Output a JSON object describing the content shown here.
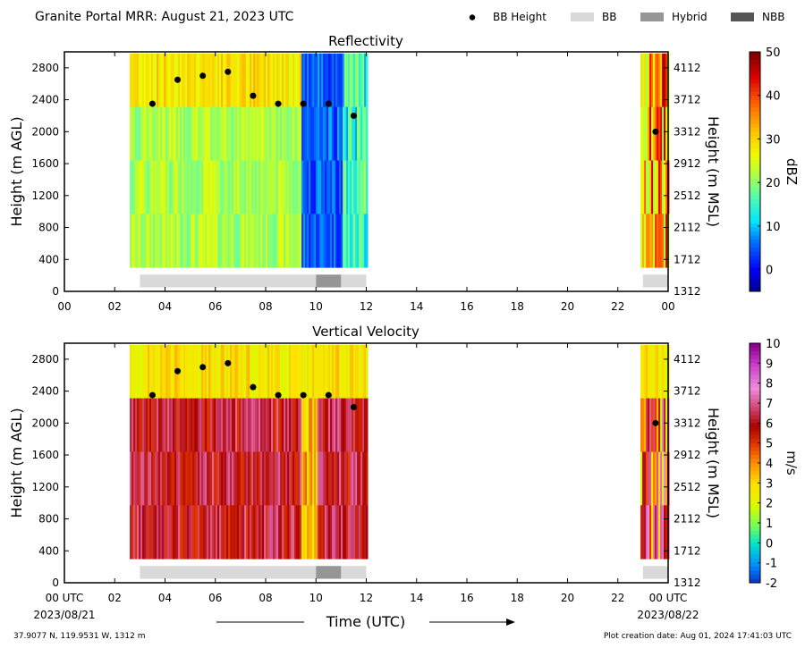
{
  "header": {
    "title": "Granite Portal MRR:  August 21, 2023 UTC",
    "legend": [
      {
        "label": "BB Height",
        "kind": "marker",
        "color": "#000000"
      },
      {
        "label": "BB",
        "kind": "box",
        "color": "#d9d9d9"
      },
      {
        "label": "Hybrid",
        "kind": "box",
        "color": "#969696"
      },
      {
        "label": "NBB",
        "kind": "box",
        "color": "#555555"
      }
    ]
  },
  "chart_data": [
    {
      "type": "heatmap",
      "title": "Reflectivity",
      "ylabel": "Height (m AGL)",
      "ylabel_right": "Height (m MSL)",
      "xlim": [
        0,
        24
      ],
      "ylim": [
        0,
        3000
      ],
      "x_ticks": [
        "00",
        "02",
        "04",
        "06",
        "08",
        "10",
        "12",
        "14",
        "16",
        "18",
        "20",
        "22",
        "00"
      ],
      "y_ticks": [
        "0",
        "400",
        "800",
        "1200",
        "1600",
        "2000",
        "2400",
        "2800"
      ],
      "y_ticks_right": [
        "1312",
        "1712",
        "2112",
        "2512",
        "2912",
        "3312",
        "3712",
        "4112"
      ],
      "colorbar": {
        "label": "dBZ",
        "min": -5,
        "max": 50,
        "ticks": [
          "0",
          "10",
          "20",
          "30",
          "40",
          "50"
        ],
        "tick_values": [
          0,
          10,
          20,
          30,
          40,
          50
        ]
      },
      "bb_height_points": [
        {
          "x": 3.5,
          "y": 2350
        },
        {
          "x": 4.5,
          "y": 2650
        },
        {
          "x": 5.5,
          "y": 2700
        },
        {
          "x": 6.5,
          "y": 2750
        },
        {
          "x": 7.5,
          "y": 2450
        },
        {
          "x": 8.5,
          "y": 2350
        },
        {
          "x": 9.5,
          "y": 2350
        },
        {
          "x": 10.5,
          "y": 2350
        },
        {
          "x": 11.5,
          "y": 2200
        },
        {
          "x": 23.5,
          "y": 2000
        }
      ],
      "data_periods": [
        [
          2.6,
          12.0
        ],
        [
          22.9,
          24.0
        ]
      ],
      "classification_bar": [
        {
          "start": 3.0,
          "end": 10.0,
          "class": "BB"
        },
        {
          "start": 10.0,
          "end": 11.0,
          "class": "Hybrid"
        },
        {
          "start": 11.0,
          "end": 12.0,
          "class": "BB"
        },
        {
          "start": 23.0,
          "end": 24.0,
          "class": "BB"
        }
      ],
      "grid": false
    },
    {
      "type": "heatmap",
      "title": "Vertical Velocity",
      "ylabel": "Height (m AGL)",
      "ylabel_right": "Height (m MSL)",
      "xlim": [
        0,
        24
      ],
      "ylim": [
        0,
        3000
      ],
      "x_ticks": [
        "00 UTC",
        "02",
        "04",
        "06",
        "08",
        "10",
        "12",
        "14",
        "16",
        "18",
        "20",
        "22",
        "00 UTC"
      ],
      "x_dates": [
        "2023/08/21",
        "2023/08/22"
      ],
      "xlabel": "Time (UTC)",
      "y_ticks": [
        "0",
        "400",
        "800",
        "1200",
        "1600",
        "2000",
        "2400",
        "2800"
      ],
      "y_ticks_right": [
        "1312",
        "1712",
        "2112",
        "2512",
        "2912",
        "3312",
        "3712",
        "4112"
      ],
      "colorbar": {
        "label": "m/s",
        "min": -2,
        "max": 10,
        "ticks": [
          "-2",
          "-1",
          "0",
          "1",
          "2",
          "3",
          "4",
          "5",
          "6",
          "7",
          "8",
          "9",
          "10"
        ],
        "tick_values": [
          -2,
          -1,
          0,
          1,
          2,
          3,
          4,
          5,
          6,
          7,
          8,
          9,
          10
        ]
      },
      "bb_height_points": [
        {
          "x": 3.5,
          "y": 2350
        },
        {
          "x": 4.5,
          "y": 2650
        },
        {
          "x": 5.5,
          "y": 2700
        },
        {
          "x": 6.5,
          "y": 2750
        },
        {
          "x": 7.5,
          "y": 2450
        },
        {
          "x": 8.5,
          "y": 2350
        },
        {
          "x": 9.5,
          "y": 2350
        },
        {
          "x": 10.5,
          "y": 2350
        },
        {
          "x": 11.5,
          "y": 2200
        },
        {
          "x": 23.5,
          "y": 2000
        }
      ],
      "data_periods": [
        [
          2.6,
          12.0
        ],
        [
          22.9,
          24.0
        ]
      ],
      "classification_bar": [
        {
          "start": 3.0,
          "end": 10.0,
          "class": "BB"
        },
        {
          "start": 10.0,
          "end": 11.0,
          "class": "Hybrid"
        },
        {
          "start": 11.0,
          "end": 12.0,
          "class": "BB"
        },
        {
          "start": 23.0,
          "end": 24.0,
          "class": "BB"
        }
      ],
      "grid": false
    }
  ],
  "footer": {
    "location": "37.9077 N, 119.9531 W, 1312 m",
    "creation_date": "Plot creation date: Aug 01, 2024 17:41:03 UTC"
  }
}
